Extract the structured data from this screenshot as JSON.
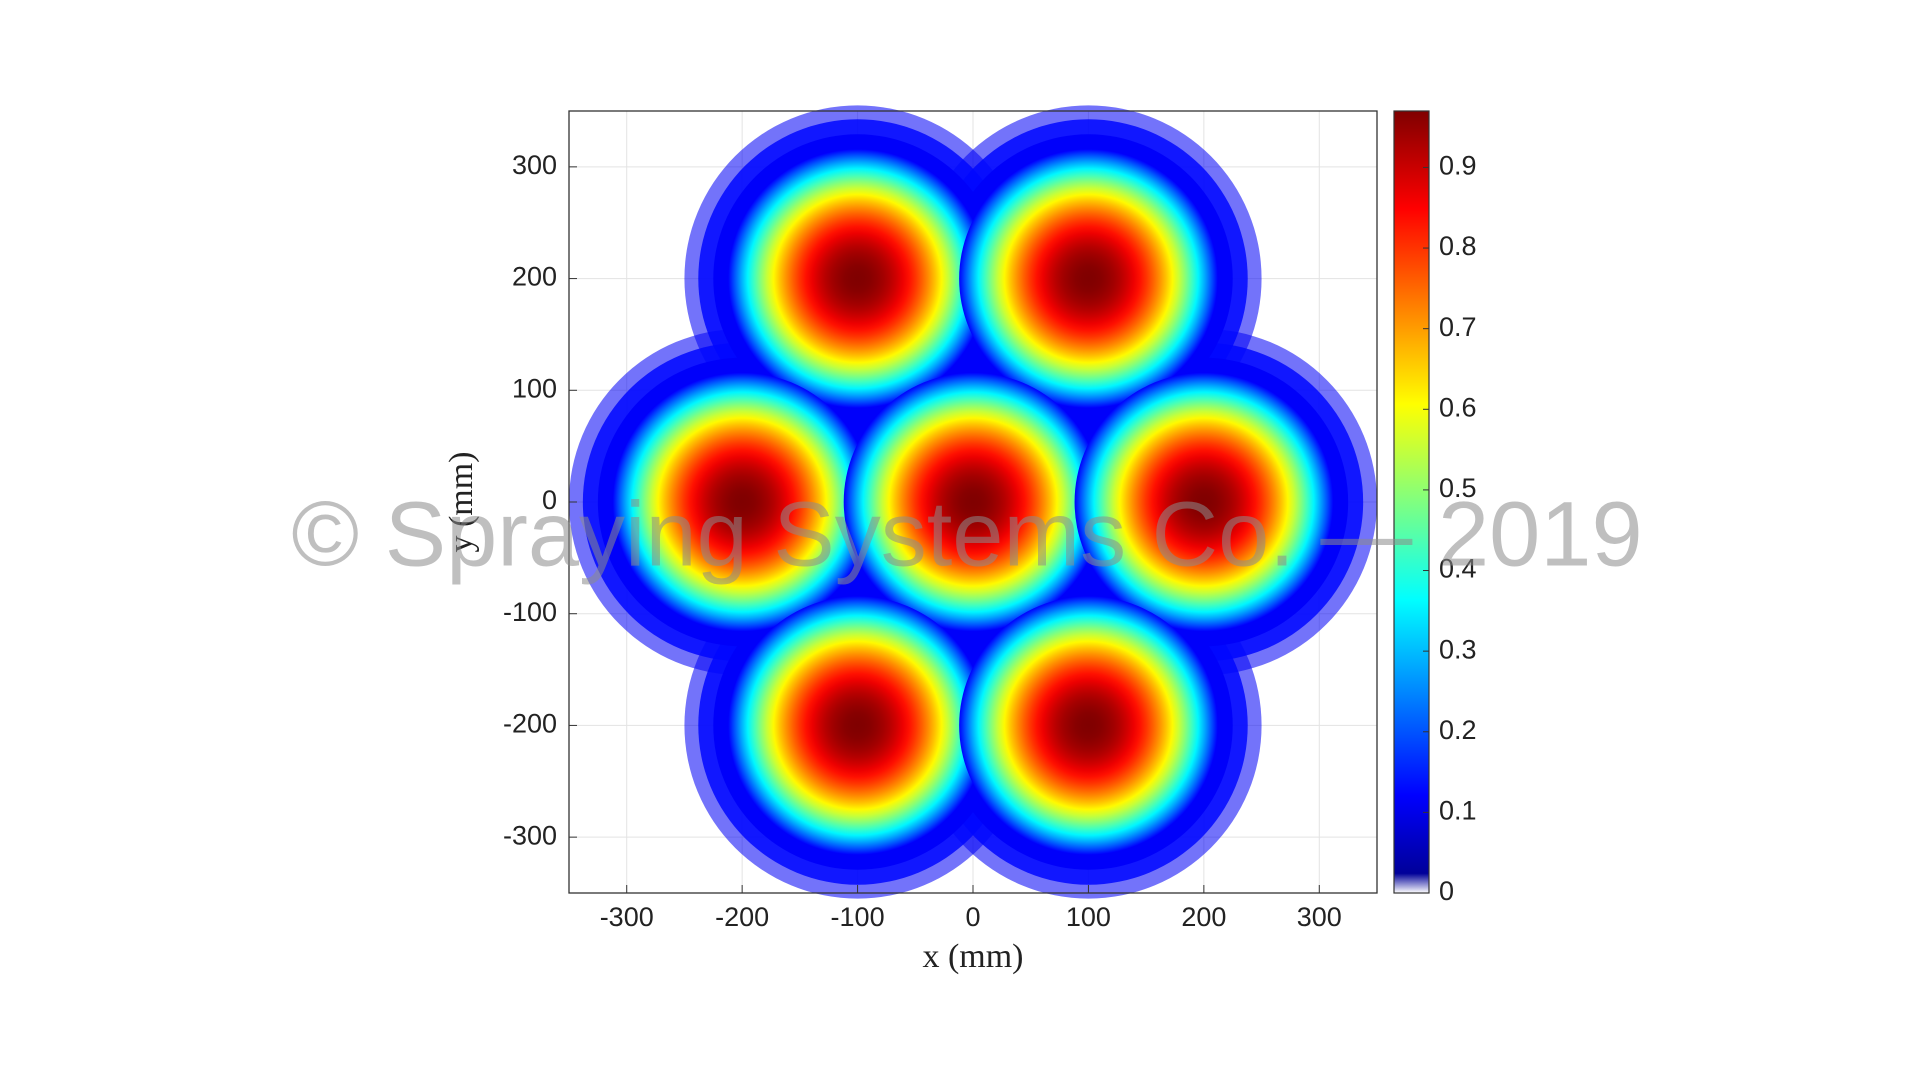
{
  "chart_data": {
    "type": "contour",
    "x": [
      -100,
      100,
      -200,
      0,
      200,
      -100,
      100
    ],
    "y": [
      200,
      200,
      0,
      0,
      0,
      -200,
      -200
    ],
    "values": [
      0.97,
      0.97,
      0.97,
      0.97,
      0.97,
      0.97,
      0.97
    ],
    "xlabel": "x (mm)",
    "ylabel": "y (mm)",
    "xlim": [
      -350,
      350
    ],
    "ylim": [
      -350,
      350
    ],
    "xticks": [
      -300,
      -200,
      -100,
      0,
      100,
      200,
      300
    ],
    "yticks": [
      -300,
      -200,
      -100,
      0,
      100,
      200,
      300
    ],
    "clim": [
      0,
      0.97
    ],
    "cticks": [
      0,
      0.1,
      0.2,
      0.3,
      0.4,
      0.5,
      0.6,
      0.7,
      0.8,
      0.9
    ],
    "colormap": "jet",
    "grid": true,
    "watermark": "© Spraying Systems Co. — 2019"
  }
}
